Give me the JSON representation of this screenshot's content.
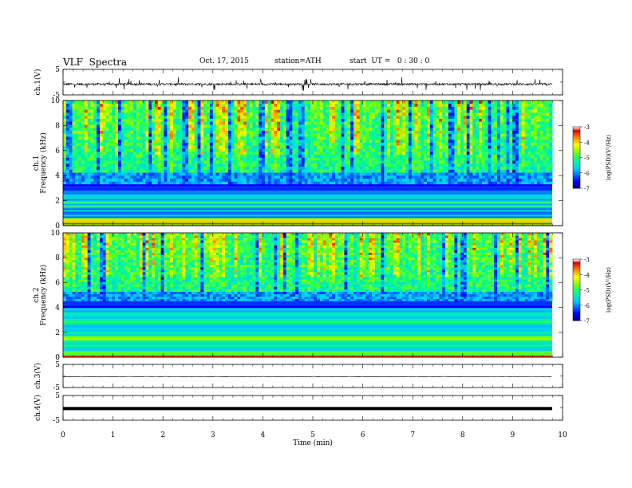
{
  "header": {
    "title": "VLF  Spectra",
    "date": "Oct. 17, 2015",
    "station": "station=ATH",
    "start_ut": "start  UT =   0 : 30 : 0"
  },
  "chart_data": [
    {
      "type": "line",
      "panel": "ch1-waveform",
      "ylabel": "ch.1(V)",
      "yticks": [
        "5",
        "-5"
      ],
      "ylim": [
        -5,
        5
      ],
      "baseline": -0.8,
      "color": "#000000"
    },
    {
      "type": "heatmap",
      "panel": "ch1-spectrogram",
      "ylabel": "ch.1\nFrequency  (kHz)",
      "ylim": [
        0,
        10
      ],
      "yticks": [
        "0",
        "2",
        "4",
        "6",
        "8",
        "10"
      ],
      "low_band_top_khz": 3.3,
      "colorbar": {
        "label": "log(PSD)(V²/Hz)",
        "ticks": [
          "-3",
          "-4",
          "-5",
          "-6",
          "-7"
        ],
        "range": [
          -7,
          -3
        ]
      }
    },
    {
      "type": "heatmap",
      "panel": "ch2-spectrogram",
      "ylabel": "ch.2\nFrequency  (kHz)",
      "ylim": [
        0,
        10
      ],
      "yticks": [
        "0",
        "2",
        "4",
        "6",
        "8",
        "10"
      ],
      "low_band_top_khz": 4.5,
      "colorbar": {
        "label": "log(PSD)(V²/Hz)",
        "ticks": [
          "-3",
          "-4",
          "-5",
          "-6",
          "-7"
        ],
        "range": [
          -7,
          -3
        ]
      }
    },
    {
      "type": "line",
      "panel": "ch3-waveform",
      "ylabel": "ch.3(V)",
      "yticks": [
        "5",
        "-5"
      ],
      "ylim": [
        -5,
        5
      ],
      "baseline": -0.3,
      "color": "#000000"
    },
    {
      "type": "line",
      "panel": "ch4-waveform",
      "ylabel": "ch.4(V)",
      "yticks": [
        "5",
        "-5"
      ],
      "ylim": [
        -5,
        5
      ],
      "baseline": -0.3,
      "color": "#000000"
    }
  ],
  "x_axis": {
    "xlabel": "Time  (min)",
    "ticks": [
      "0",
      "1",
      "2",
      "3",
      "4",
      "5",
      "6",
      "7",
      "8",
      "9",
      "10"
    ],
    "xlim": [
      0,
      10
    ],
    "data_end": 9.8
  }
}
